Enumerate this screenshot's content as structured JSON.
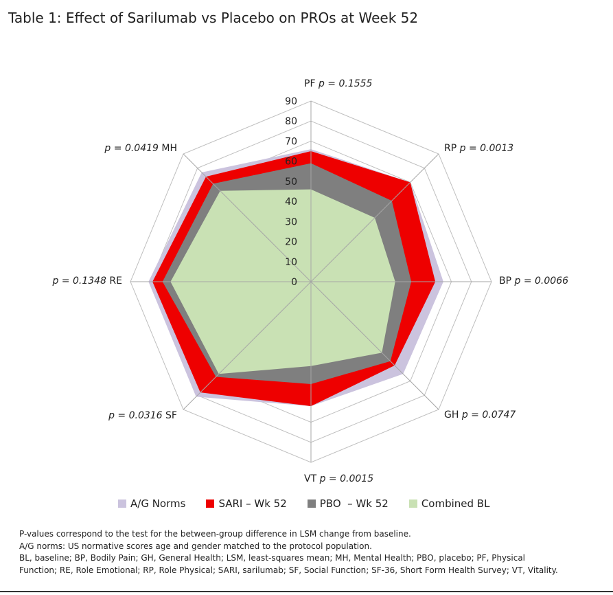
{
  "title": "Table 1: Effect of Sarilumab vs Placebo on PROs at Week 52",
  "chart_data": {
    "type": "radar",
    "axes": [
      {
        "label": "PF",
        "p": "p = 0.1555"
      },
      {
        "label": "RP",
        "p": "p = 0.0013"
      },
      {
        "label": "BP",
        "p": "p = 0.0066"
      },
      {
        "label": "GH",
        "p": "p = 0.0747"
      },
      {
        "label": "VT",
        "p": "p = 0.0015"
      },
      {
        "label": "SF",
        "p": "p = 0.0316"
      },
      {
        "label": "RE",
        "p": "p = 0.1348"
      },
      {
        "label": "MH",
        "p": "p = 0.0419"
      }
    ],
    "range": [
      0,
      90
    ],
    "ticks": [
      "0",
      "10",
      "20",
      "30",
      "40",
      "50",
      "60",
      "70",
      "80",
      "90"
    ],
    "series": [
      {
        "name": "A/G Norms",
        "color": "#cbc3de",
        "values": [
          66,
          70,
          66,
          65,
          62,
          81,
          81,
          77
        ]
      },
      {
        "name": "SARI – Wk 52",
        "color": "#ee0000",
        "values": [
          65,
          70,
          62,
          59,
          62,
          78,
          79,
          74
        ]
      },
      {
        "name": "PBO  – Wk 52",
        "color": "#7f7f7f",
        "values": [
          59,
          57,
          50,
          56,
          51,
          67,
          74,
          69
        ]
      },
      {
        "name": "Combined BL",
        "color": "#c9e1b4",
        "values": [
          46,
          45,
          42,
          50,
          42,
          65,
          70,
          64
        ]
      }
    ]
  },
  "notes": [
    "P-values correspond to the test for the between-group difference in LSM change from baseline.",
    "A/G norms: US normative scores age and gender matched to the protocol population.",
    "BL, baseline; BP, Bodily Pain; GH, General Health; LSM, least-squares mean; MH, Mental Health; PBO, placebo; PF, Physical",
    "Function; RE, Role Emotional; RP, Role Physical; SARI, sarilumab; SF, Social Function; SF-36, Short Form Health Survey; VT, Vitality."
  ]
}
